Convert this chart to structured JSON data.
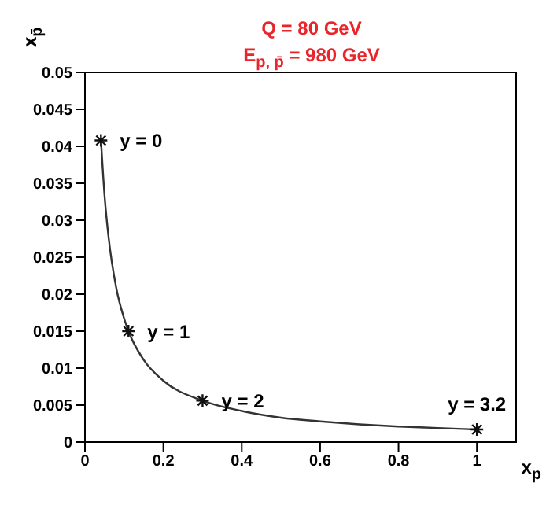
{
  "chart_data": {
    "type": "line",
    "title": "Q = 80 GeV",
    "subtitle": "E$_{p, p̄}$ = 980 GeV",
    "xlabel": "x$_{p}$",
    "ylabel": "x$_{p̄}$",
    "series": [
      {
        "color": "#333333",
        "line_style": "solid",
        "marker": "none",
        "x": [
          0.0408,
          0.05,
          0.06,
          0.08,
          0.1,
          0.111,
          0.15,
          0.2,
          0.3,
          0.4,
          0.5,
          0.6,
          0.7,
          0.8,
          0.9,
          1.0
        ],
        "values": [
          0.0408,
          0.0333,
          0.0278,
          0.0208,
          0.0167,
          0.015,
          0.0111,
          0.0083,
          0.0056,
          0.0042,
          0.0033,
          0.0028,
          0.0024,
          0.0021,
          0.0019,
          0.0017
        ]
      },
      {
        "type": "scatter",
        "color": "#111111",
        "marker": "cross",
        "x": [
          0.0408,
          0.111,
          0.3,
          1.0
        ],
        "values": [
          0.0408,
          0.015,
          0.0056,
          0.0017
        ]
      }
    ],
    "xlim": [
      0,
      1.1
    ],
    "xticks": [
      0,
      0.2,
      0.4,
      0.6,
      0.8,
      1
    ],
    "ylim": [
      0,
      0.05
    ],
    "yticks": [
      0,
      0.005,
      0.01,
      0.015,
      0.02,
      0.025,
      0.03,
      0.035,
      0.04,
      0.045,
      0.05
    ],
    "annotations": [
      {
        "text": "y = 0",
        "x": 0.0408,
        "y": 0.0408
      },
      {
        "text": "y = 1",
        "x": 0.111,
        "y": 0.015
      },
      {
        "text": "y = 2",
        "x": 0.3,
        "y": 0.0056
      },
      {
        "text": "y = 3.2",
        "x": 1.0,
        "y": 0.0017
      }
    ],
    "grid": false,
    "legend": false
  }
}
